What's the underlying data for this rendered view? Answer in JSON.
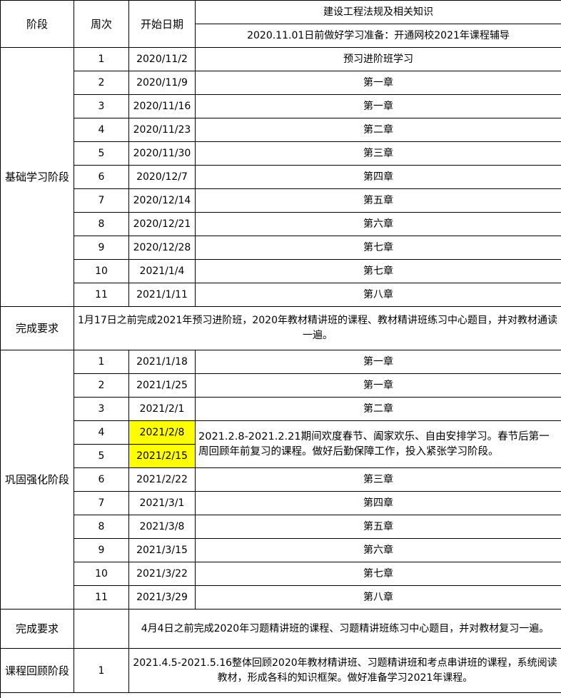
{
  "header": {
    "phase": "阶段",
    "week": "周次",
    "start_date": "开始日期",
    "subject": "建设工程法规及相关知识",
    "prep_note": "2020.11.01日前做好学习准备：开通网校2021年课程辅导"
  },
  "basic_stage": {
    "label": "基础学习阶段",
    "rows": [
      {
        "week": "1",
        "date": "2020/11/2",
        "content": "预习进阶班学习"
      },
      {
        "week": "2",
        "date": "2020/11/9",
        "content": "第一章"
      },
      {
        "week": "3",
        "date": "2020/11/16",
        "content": "第一章"
      },
      {
        "week": "4",
        "date": "2020/11/23",
        "content": "第二章"
      },
      {
        "week": "5",
        "date": "2020/11/30",
        "content": "第三章"
      },
      {
        "week": "6",
        "date": "2020/12/7",
        "content": "第四章"
      },
      {
        "week": "7",
        "date": "2020/12/14",
        "content": "第五章"
      },
      {
        "week": "8",
        "date": "2020/12/21",
        "content": "第六章"
      },
      {
        "week": "9",
        "date": "2020/12/28",
        "content": "第七章"
      },
      {
        "week": "10",
        "date": "2021/1/4",
        "content": "第七章"
      },
      {
        "week": "11",
        "date": "2021/1/11",
        "content": "第八章"
      }
    ],
    "requirement_label": "完成要求",
    "requirement": "1月17日之前完成2021年预习进阶班，2020年教材精讲班的课程、教材精讲班练习中心题目，并对教材通读一遍。"
  },
  "consolidation_stage": {
    "label": "巩固强化阶段",
    "rows": [
      {
        "week": "1",
        "date": "2021/1/18",
        "content": "第一章"
      },
      {
        "week": "2",
        "date": "2021/1/25",
        "content": "第一章"
      },
      {
        "week": "3",
        "date": "2021/2/1",
        "content": "第二章"
      },
      {
        "week": "4",
        "date": "2021/2/8",
        "content": "2021.2.8-2021.2.21期间欢度春节、阖家欢乐、自由安排学习。春节后第一周回顾年前复习的课程。做好后勤保障工作，投入紧张学习阶段。"
      },
      {
        "week": "5",
        "date": "2021/2/15",
        "content": ""
      },
      {
        "week": "6",
        "date": "2021/2/22",
        "content": "第三章"
      },
      {
        "week": "7",
        "date": "2021/3/1",
        "content": "第四章"
      },
      {
        "week": "8",
        "date": "2021/3/8",
        "content": "第五章"
      },
      {
        "week": "9",
        "date": "2021/3/15",
        "content": "第六章"
      },
      {
        "week": "10",
        "date": "2021/3/22",
        "content": "第七章"
      },
      {
        "week": "11",
        "date": "2021/3/29",
        "content": "第八章"
      }
    ],
    "requirement_label": "完成要求",
    "requirement": "4月4日之前完成2020年习题精讲班的课程、习题精讲班练习中心题目，并对教材复习一遍。"
  },
  "review_stage": {
    "label": "课程回顾阶段",
    "week": "1",
    "content": "2021.4.5-2021.5.16整体回顾2020年教材精讲班、习题精讲班和考点串讲班的课程，系统阅读教材，形成各科的知识框架。做好准备学习2021年课程。"
  },
  "colors": {
    "highlight": "#ffff00"
  }
}
